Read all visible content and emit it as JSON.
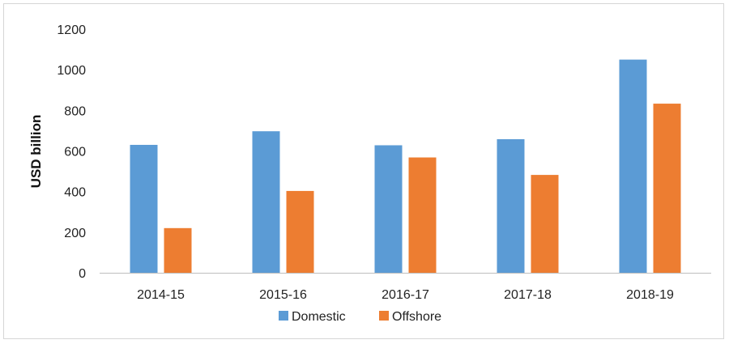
{
  "chart_data": {
    "type": "bar",
    "categories": [
      "2014-15",
      "2015-16",
      "2016-17",
      "2017-18",
      "2018-19"
    ],
    "series": [
      {
        "name": "Domestic",
        "color": "#5B9BD5",
        "values": [
          630,
          697,
          628,
          658,
          1050
        ]
      },
      {
        "name": "Offshore",
        "color": "#ED7D31",
        "values": [
          220,
          403,
          568,
          482,
          833
        ]
      }
    ],
    "title": "",
    "xlabel": "",
    "ylabel": "USD billion",
    "ylim": [
      0,
      1200
    ],
    "yticks": [
      "0",
      "200",
      "400",
      "600",
      "800",
      "1000",
      "1200"
    ],
    "grid": false,
    "legend_position": "bottom-center"
  }
}
